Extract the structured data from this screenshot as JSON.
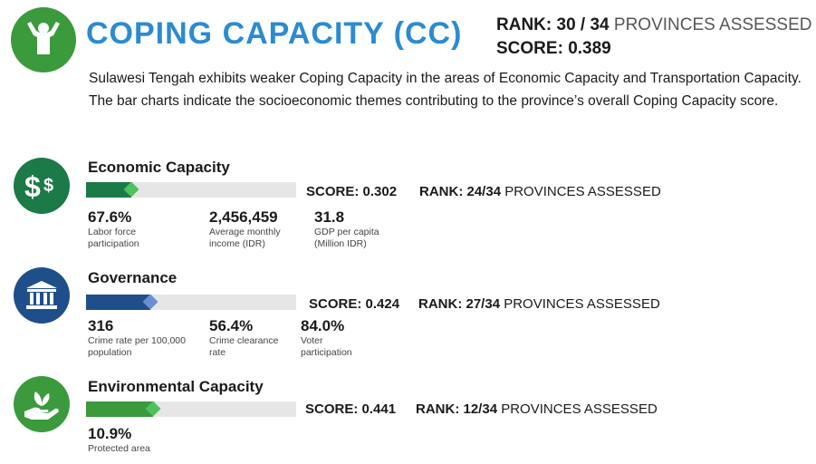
{
  "header": {
    "title": "COPING CAPACITY (CC)",
    "rank_label": "RANK:",
    "rank_value": "30 / 34",
    "rank_suffix": "PROVINCES ASSESSED",
    "score_label": "SCORE:",
    "score_value": "0.389",
    "icon": "person-relaxing-icon",
    "description_line1": "Sulawesi Tengah exhibits weaker Coping Capacity in the areas of Economic Capacity and Transportation Capacity.",
    "description_line2": "The bar charts indicate the socioeconomic themes contributing to the province’s overall Coping Capacity score."
  },
  "colors": {
    "title_blue": "#2b8bd1",
    "economic": "#1b7a48",
    "governance": "#1f4f8b",
    "environmental": "#3a9a3c",
    "track": "#e6e6e6"
  },
  "sections": [
    {
      "title": "Economic Capacity",
      "icon": "dollar-sign-icon",
      "score_label": "SCORE:",
      "score_value": "0.302",
      "score_fraction": 0.302,
      "rank_label": "RANK:",
      "rank_value": "24/34",
      "rank_suffix": "PROVINCES ASSESSED",
      "indicators": [
        {
          "value": "67.6%",
          "label": "Labor force participation"
        },
        {
          "value": "2,456,459",
          "label": "Average monthly income (IDR)"
        },
        {
          "value": "31.8",
          "label": "GDP per capita (Million IDR)"
        }
      ]
    },
    {
      "title": "Governance",
      "icon": "government-building-icon",
      "score_label": "SCORE:",
      "score_value": "0.424",
      "score_fraction": 0.424,
      "rank_label": "RANK:",
      "rank_value": "27/34",
      "rank_suffix": "PROVINCES ASSESSED",
      "indicators": [
        {
          "value": "316",
          "label": "Crime rate per 100,000 population"
        },
        {
          "value": "56.4%",
          "label": "Crime clearance rate"
        },
        {
          "value": "84.0%",
          "label": "Voter participation"
        }
      ]
    },
    {
      "title": "Environmental Capacity",
      "icon": "plant-in-hand-icon",
      "score_label": "SCORE:",
      "score_value": "0.441",
      "score_fraction": 0.441,
      "rank_label": "RANK:",
      "rank_value": "12/34",
      "rank_suffix": "PROVINCES ASSESSED",
      "indicators": [
        {
          "value": "10.9%",
          "label": "Protected area"
        }
      ]
    }
  ]
}
